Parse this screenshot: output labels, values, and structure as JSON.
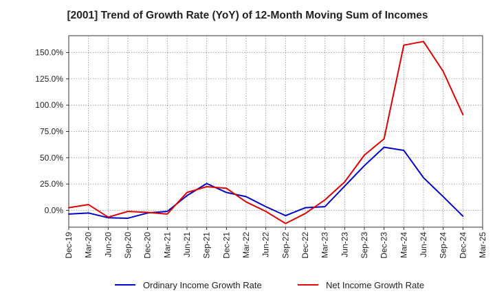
{
  "chart_data": {
    "type": "line",
    "title": "[2001]  Trend of Growth Rate (YoY) of 12-Month Moving Sum of Incomes",
    "xlabel": "",
    "ylabel": "",
    "x": [
      "Dec-19",
      "Mar-20",
      "Jun-20",
      "Sep-20",
      "Dec-20",
      "Mar-21",
      "Jun-21",
      "Sep-21",
      "Dec-21",
      "Mar-22",
      "Jun-22",
      "Sep-22",
      "Dec-22",
      "Mar-23",
      "Jun-23",
      "Sep-23",
      "Dec-23",
      "Mar-24",
      "Jun-24",
      "Sep-24",
      "Dec-24",
      "Mar-25"
    ],
    "y_ticks": [
      0,
      25,
      50,
      75,
      100,
      125,
      150
    ],
    "y_tick_labels": [
      "0.0%",
      "25.0%",
      "50.0%",
      "75.0%",
      "100.0%",
      "125.0%",
      "150.0%"
    ],
    "ylim": [
      -16,
      166
    ],
    "grid": true,
    "legend_position": "bottom",
    "series": [
      {
        "name": "Ordinary Income Growth Rate",
        "color": "#0000cc",
        "values": [
          -3.5,
          -2.5,
          -7,
          -7.5,
          -2.5,
          -1,
          14,
          25.5,
          17,
          13,
          3.5,
          -5,
          2.5,
          3.5,
          23,
          42.5,
          60,
          57,
          31,
          13,
          -5.5,
          null
        ]
      },
      {
        "name": "Net Income Growth Rate",
        "color": "#dd0000",
        "values": [
          2.5,
          5.5,
          -6.5,
          -1,
          -2,
          -3.5,
          17,
          22.5,
          21,
          8,
          -1,
          -12.5,
          -3,
          10,
          27,
          52.5,
          68,
          157,
          160.5,
          132,
          91,
          null
        ]
      }
    ]
  }
}
